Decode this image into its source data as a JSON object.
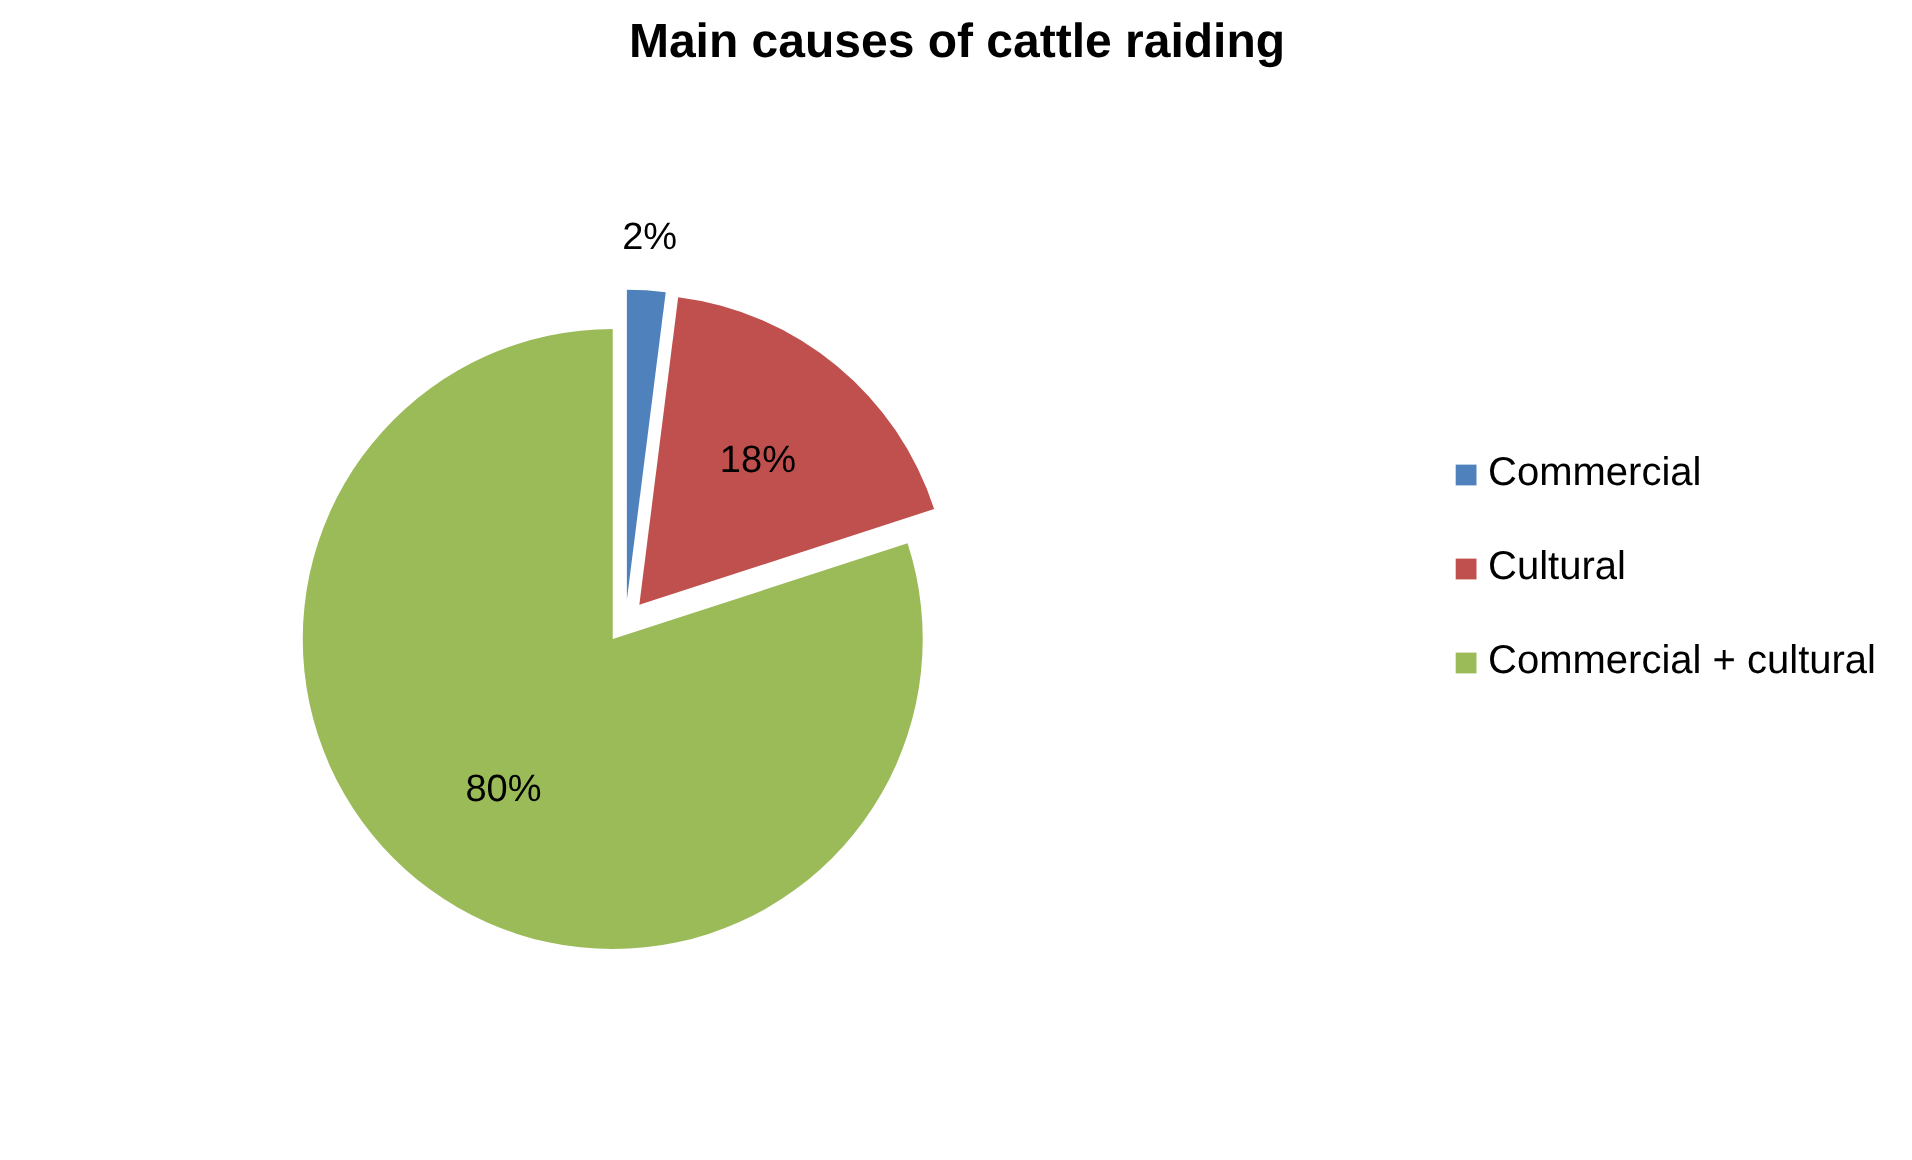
{
  "chart_data": {
    "type": "pie",
    "title": "Main causes of cattle raiding",
    "categories": [
      "Commercial",
      "Cultural",
      "Commercial + cultural"
    ],
    "values": [
      2,
      18,
      80
    ],
    "colors": [
      "#4f81bd",
      "#c0504d",
      "#9bbb59"
    ],
    "value_labels": [
      "2%",
      "18%",
      "80%"
    ],
    "legend": "right"
  }
}
